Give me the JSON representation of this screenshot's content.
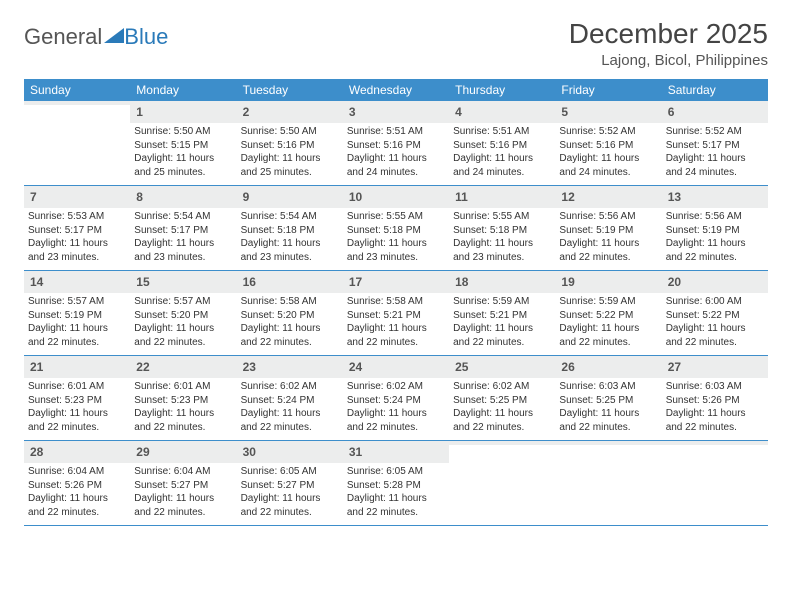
{
  "logo": {
    "text1": "General",
    "text2": "Blue"
  },
  "title": "December 2025",
  "location": "Lajong, Bicol, Philippines",
  "colors": {
    "header_bg": "#3d8ecb",
    "daynum_bg": "#eceded",
    "text": "#333333",
    "title_text": "#444444",
    "logo_gray": "#555555",
    "logo_blue": "#2a7ab9",
    "row_border": "#3d8ecb"
  },
  "day_headers": [
    "Sunday",
    "Monday",
    "Tuesday",
    "Wednesday",
    "Thursday",
    "Friday",
    "Saturday"
  ],
  "weeks": [
    [
      {
        "n": "",
        "sr": "",
        "ss": "",
        "dl": ""
      },
      {
        "n": "1",
        "sr": "Sunrise: 5:50 AM",
        "ss": "Sunset: 5:15 PM",
        "dl": "Daylight: 11 hours and 25 minutes."
      },
      {
        "n": "2",
        "sr": "Sunrise: 5:50 AM",
        "ss": "Sunset: 5:16 PM",
        "dl": "Daylight: 11 hours and 25 minutes."
      },
      {
        "n": "3",
        "sr": "Sunrise: 5:51 AM",
        "ss": "Sunset: 5:16 PM",
        "dl": "Daylight: 11 hours and 24 minutes."
      },
      {
        "n": "4",
        "sr": "Sunrise: 5:51 AM",
        "ss": "Sunset: 5:16 PM",
        "dl": "Daylight: 11 hours and 24 minutes."
      },
      {
        "n": "5",
        "sr": "Sunrise: 5:52 AM",
        "ss": "Sunset: 5:16 PM",
        "dl": "Daylight: 11 hours and 24 minutes."
      },
      {
        "n": "6",
        "sr": "Sunrise: 5:52 AM",
        "ss": "Sunset: 5:17 PM",
        "dl": "Daylight: 11 hours and 24 minutes."
      }
    ],
    [
      {
        "n": "7",
        "sr": "Sunrise: 5:53 AM",
        "ss": "Sunset: 5:17 PM",
        "dl": "Daylight: 11 hours and 23 minutes."
      },
      {
        "n": "8",
        "sr": "Sunrise: 5:54 AM",
        "ss": "Sunset: 5:17 PM",
        "dl": "Daylight: 11 hours and 23 minutes."
      },
      {
        "n": "9",
        "sr": "Sunrise: 5:54 AM",
        "ss": "Sunset: 5:18 PM",
        "dl": "Daylight: 11 hours and 23 minutes."
      },
      {
        "n": "10",
        "sr": "Sunrise: 5:55 AM",
        "ss": "Sunset: 5:18 PM",
        "dl": "Daylight: 11 hours and 23 minutes."
      },
      {
        "n": "11",
        "sr": "Sunrise: 5:55 AM",
        "ss": "Sunset: 5:18 PM",
        "dl": "Daylight: 11 hours and 23 minutes."
      },
      {
        "n": "12",
        "sr": "Sunrise: 5:56 AM",
        "ss": "Sunset: 5:19 PM",
        "dl": "Daylight: 11 hours and 22 minutes."
      },
      {
        "n": "13",
        "sr": "Sunrise: 5:56 AM",
        "ss": "Sunset: 5:19 PM",
        "dl": "Daylight: 11 hours and 22 minutes."
      }
    ],
    [
      {
        "n": "14",
        "sr": "Sunrise: 5:57 AM",
        "ss": "Sunset: 5:19 PM",
        "dl": "Daylight: 11 hours and 22 minutes."
      },
      {
        "n": "15",
        "sr": "Sunrise: 5:57 AM",
        "ss": "Sunset: 5:20 PM",
        "dl": "Daylight: 11 hours and 22 minutes."
      },
      {
        "n": "16",
        "sr": "Sunrise: 5:58 AM",
        "ss": "Sunset: 5:20 PM",
        "dl": "Daylight: 11 hours and 22 minutes."
      },
      {
        "n": "17",
        "sr": "Sunrise: 5:58 AM",
        "ss": "Sunset: 5:21 PM",
        "dl": "Daylight: 11 hours and 22 minutes."
      },
      {
        "n": "18",
        "sr": "Sunrise: 5:59 AM",
        "ss": "Sunset: 5:21 PM",
        "dl": "Daylight: 11 hours and 22 minutes."
      },
      {
        "n": "19",
        "sr": "Sunrise: 5:59 AM",
        "ss": "Sunset: 5:22 PM",
        "dl": "Daylight: 11 hours and 22 minutes."
      },
      {
        "n": "20",
        "sr": "Sunrise: 6:00 AM",
        "ss": "Sunset: 5:22 PM",
        "dl": "Daylight: 11 hours and 22 minutes."
      }
    ],
    [
      {
        "n": "21",
        "sr": "Sunrise: 6:01 AM",
        "ss": "Sunset: 5:23 PM",
        "dl": "Daylight: 11 hours and 22 minutes."
      },
      {
        "n": "22",
        "sr": "Sunrise: 6:01 AM",
        "ss": "Sunset: 5:23 PM",
        "dl": "Daylight: 11 hours and 22 minutes."
      },
      {
        "n": "23",
        "sr": "Sunrise: 6:02 AM",
        "ss": "Sunset: 5:24 PM",
        "dl": "Daylight: 11 hours and 22 minutes."
      },
      {
        "n": "24",
        "sr": "Sunrise: 6:02 AM",
        "ss": "Sunset: 5:24 PM",
        "dl": "Daylight: 11 hours and 22 minutes."
      },
      {
        "n": "25",
        "sr": "Sunrise: 6:02 AM",
        "ss": "Sunset: 5:25 PM",
        "dl": "Daylight: 11 hours and 22 minutes."
      },
      {
        "n": "26",
        "sr": "Sunrise: 6:03 AM",
        "ss": "Sunset: 5:25 PM",
        "dl": "Daylight: 11 hours and 22 minutes."
      },
      {
        "n": "27",
        "sr": "Sunrise: 6:03 AM",
        "ss": "Sunset: 5:26 PM",
        "dl": "Daylight: 11 hours and 22 minutes."
      }
    ],
    [
      {
        "n": "28",
        "sr": "Sunrise: 6:04 AM",
        "ss": "Sunset: 5:26 PM",
        "dl": "Daylight: 11 hours and 22 minutes."
      },
      {
        "n": "29",
        "sr": "Sunrise: 6:04 AM",
        "ss": "Sunset: 5:27 PM",
        "dl": "Daylight: 11 hours and 22 minutes."
      },
      {
        "n": "30",
        "sr": "Sunrise: 6:05 AM",
        "ss": "Sunset: 5:27 PM",
        "dl": "Daylight: 11 hours and 22 minutes."
      },
      {
        "n": "31",
        "sr": "Sunrise: 6:05 AM",
        "ss": "Sunset: 5:28 PM",
        "dl": "Daylight: 11 hours and 22 minutes."
      },
      {
        "n": "",
        "sr": "",
        "ss": "",
        "dl": ""
      },
      {
        "n": "",
        "sr": "",
        "ss": "",
        "dl": ""
      },
      {
        "n": "",
        "sr": "",
        "ss": "",
        "dl": ""
      }
    ]
  ]
}
